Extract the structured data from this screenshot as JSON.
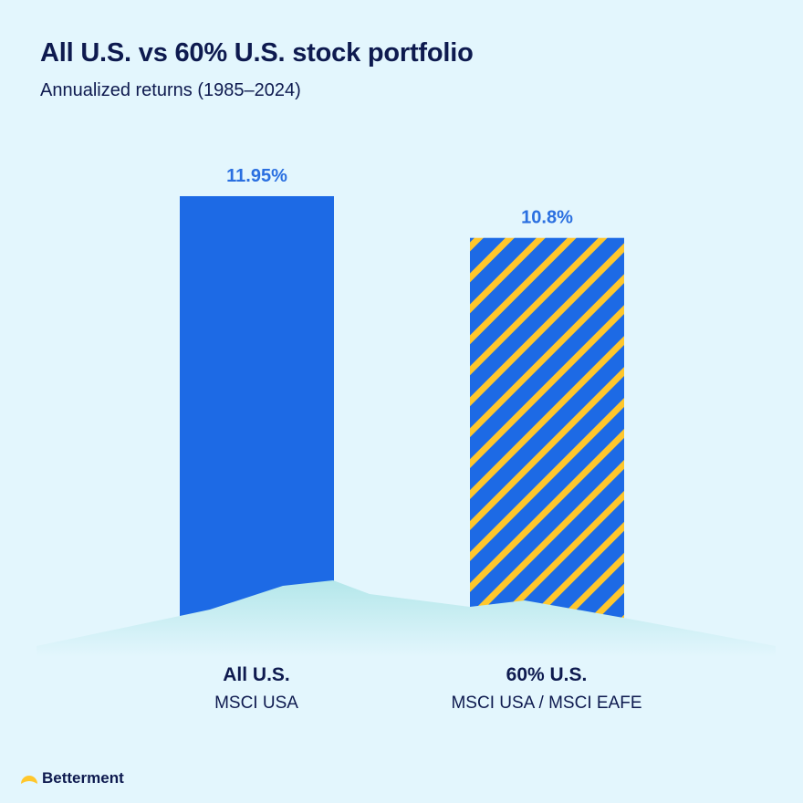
{
  "brand": {
    "name": "Betterment",
    "logo_color": "#ffc72c"
  },
  "colors": {
    "background": "#e3f6fd",
    "bar_blue": "#1d6ae5",
    "stripe_yellow": "#ffc72c",
    "label_blue": "#2a6fe0",
    "text": "#0e1a4f"
  },
  "chart_data": {
    "type": "bar",
    "title": "All U.S. vs 60% U.S. stock portfolio",
    "subtitle": "Annualized returns (1985–2024)",
    "categories": [
      "All U.S.",
      "60% U.S."
    ],
    "category_subtitles": [
      "MSCI USA",
      "MSCI USA / MSCI EAFE"
    ],
    "values": [
      11.95,
      10.8
    ],
    "value_labels": [
      "11.95%",
      "10.8%"
    ],
    "patterns": [
      "solid",
      "diagonal-stripes"
    ],
    "ylim": [
      0,
      12
    ],
    "xlabel": "",
    "ylabel": "",
    "grid": false
  }
}
